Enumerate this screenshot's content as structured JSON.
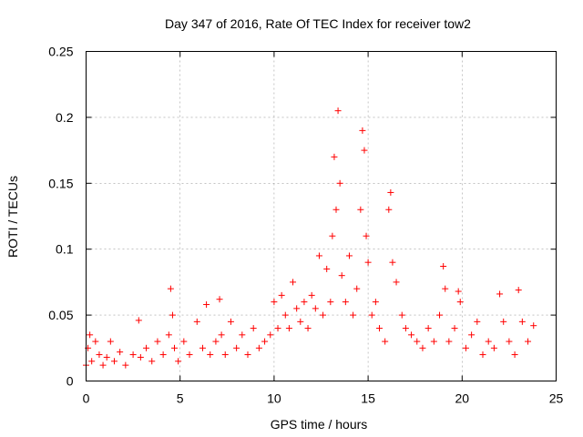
{
  "chart_data": {
    "type": "scatter",
    "title": "Day 347 of 2016, Rate Of TEC Index for receiver tow2",
    "xlabel": "GPS time / hours",
    "ylabel": "ROTI / TECUs",
    "xlim": [
      0,
      25
    ],
    "ylim": [
      0,
      0.25
    ],
    "xticks": [
      0,
      5,
      10,
      15,
      20,
      25
    ],
    "xtick_labels": [
      "0",
      "5",
      "10",
      "15",
      "20",
      "25"
    ],
    "yticks": [
      0,
      0.05,
      0.1,
      0.15,
      0.2,
      0.25
    ],
    "ytick_labels": [
      "0",
      "0.05",
      "0.1",
      "0.15",
      "0.2",
      "0.25"
    ],
    "grid": true,
    "marker": "plus",
    "color": "#ff0000",
    "series": [
      {
        "name": "ROTI",
        "x": [
          0.0,
          0.1,
          0.2,
          0.3,
          0.5,
          0.7,
          0.9,
          1.1,
          1.3,
          1.5,
          1.8,
          2.1,
          2.5,
          2.8,
          2.9,
          3.2,
          3.5,
          3.8,
          4.1,
          4.4,
          4.5,
          4.6,
          4.7,
          4.9,
          5.2,
          5.5,
          5.9,
          6.2,
          6.4,
          6.6,
          6.9,
          7.1,
          7.2,
          7.4,
          7.7,
          8.0,
          8.3,
          8.6,
          8.9,
          9.2,
          9.5,
          9.8,
          10.0,
          10.2,
          10.4,
          10.6,
          10.8,
          11.0,
          11.2,
          11.4,
          11.6,
          11.8,
          12.0,
          12.2,
          12.4,
          12.6,
          12.8,
          13.0,
          13.1,
          13.2,
          13.3,
          13.4,
          13.5,
          13.6,
          13.8,
          14.0,
          14.2,
          14.4,
          14.6,
          14.7,
          14.8,
          14.9,
          15.0,
          15.2,
          15.4,
          15.6,
          15.9,
          16.1,
          16.2,
          16.3,
          16.5,
          16.8,
          17.0,
          17.3,
          17.6,
          17.9,
          18.2,
          18.5,
          18.8,
          19.0,
          19.1,
          19.3,
          19.6,
          19.8,
          19.9,
          20.2,
          20.5,
          20.8,
          21.1,
          21.4,
          21.7,
          22.0,
          22.2,
          22.5,
          22.8,
          23.0,
          23.2,
          23.5,
          23.8
        ],
        "y": [
          0.012,
          0.025,
          0.035,
          0.015,
          0.03,
          0.02,
          0.012,
          0.018,
          0.03,
          0.015,
          0.022,
          0.012,
          0.02,
          0.046,
          0.018,
          0.025,
          0.015,
          0.03,
          0.02,
          0.035,
          0.07,
          0.05,
          0.025,
          0.015,
          0.03,
          0.02,
          0.045,
          0.025,
          0.058,
          0.02,
          0.03,
          0.062,
          0.035,
          0.02,
          0.045,
          0.025,
          0.035,
          0.02,
          0.04,
          0.025,
          0.03,
          0.035,
          0.06,
          0.04,
          0.065,
          0.05,
          0.04,
          0.075,
          0.055,
          0.045,
          0.06,
          0.04,
          0.065,
          0.055,
          0.095,
          0.05,
          0.085,
          0.06,
          0.11,
          0.17,
          0.13,
          0.205,
          0.15,
          0.08,
          0.06,
          0.095,
          0.05,
          0.07,
          0.13,
          0.19,
          0.175,
          0.11,
          0.09,
          0.05,
          0.06,
          0.04,
          0.03,
          0.13,
          0.143,
          0.09,
          0.075,
          0.05,
          0.04,
          0.035,
          0.03,
          0.025,
          0.04,
          0.03,
          0.05,
          0.087,
          0.07,
          0.03,
          0.04,
          0.068,
          0.06,
          0.025,
          0.035,
          0.045,
          0.02,
          0.03,
          0.025,
          0.066,
          0.045,
          0.03,
          0.02,
          0.069,
          0.045,
          0.03,
          0.042
        ]
      }
    ]
  }
}
